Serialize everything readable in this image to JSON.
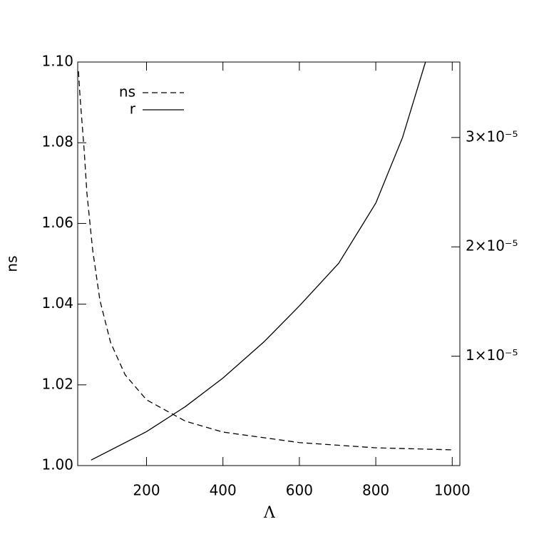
{
  "chart_data": {
    "type": "line",
    "x_label": "Λ",
    "y_label": "ns",
    "xlim": [
      20,
      1020
    ],
    "xticks": [
      200,
      400,
      600,
      800,
      1000
    ],
    "ylim": [
      1.0,
      1.1
    ],
    "yticks": [
      {
        "value": 1.0,
        "label": "1.00"
      },
      {
        "value": 1.02,
        "label": "1.02"
      },
      {
        "value": 1.04,
        "label": "1.04"
      },
      {
        "value": 1.06,
        "label": "1.06"
      },
      {
        "value": 1.08,
        "label": "1.08"
      },
      {
        "value": 1.1,
        "label": "1.10"
      }
    ],
    "y2lim": [
      0,
      3.69e-05
    ],
    "y2ticks": [
      {
        "value": 1e-05,
        "label": "1×10⁻⁵"
      },
      {
        "value": 2e-05,
        "label": "2×10⁻⁵"
      },
      {
        "value": 3e-05,
        "label": "3×10⁻⁵"
      }
    ],
    "legend": "upper left",
    "series": [
      {
        "name": "ns",
        "color": "#000000",
        "dash": "dashed",
        "x": [
          22,
          26,
          37,
          44,
          59,
          78,
          106,
          144,
          200,
          302,
          400,
          600,
          800,
          1000
        ],
        "values": [
          1.0977,
          1.0915,
          1.078,
          1.0676,
          1.0535,
          1.041,
          1.0305,
          1.0225,
          1.0163,
          1.011,
          1.0083,
          1.0057,
          1.0044,
          1.0039
        ]
      },
      {
        "name": "r",
        "color": "#000000",
        "dash": "solid",
        "axis": "y2",
        "x": [
          55,
          200,
          302,
          400,
          507,
          600,
          703,
          800,
          870,
          930
        ],
        "values": [
          5e-07,
          3.1e-06,
          5.4e-06,
          8e-06,
          1.13e-05,
          1.46e-05,
          1.85e-05,
          2.4e-05,
          3e-05,
          3.69e-05
        ]
      }
    ]
  }
}
